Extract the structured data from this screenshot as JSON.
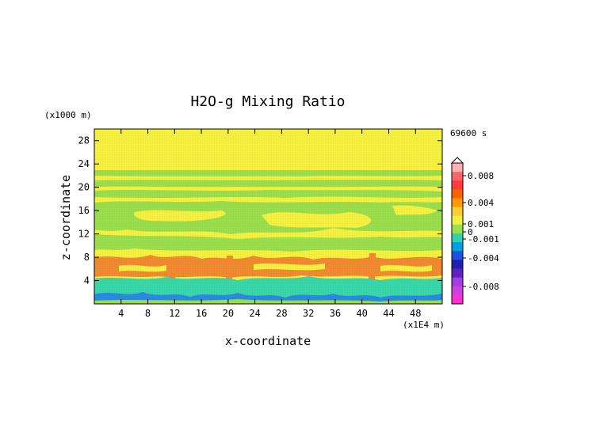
{
  "chart_data": {
    "type": "heatmap",
    "title": "H2O-g Mixing Ratio",
    "xlabel": "x-coordinate",
    "ylabel": "z-coordinate",
    "x_unit": "(x1E4 m)",
    "y_unit": "(x1000 m)",
    "time_label": "69600 s",
    "xlim": [
      0,
      52
    ],
    "ylim": [
      0,
      30
    ],
    "x_ticks": [
      4,
      8,
      12,
      16,
      20,
      24,
      28,
      32,
      36,
      40,
      44,
      48
    ],
    "y_ticks": [
      4,
      8,
      12,
      16,
      20,
      24,
      28
    ],
    "colorbar": {
      "labels": [
        "0.008",
        "0.004",
        "0.001",
        "0",
        "-0.001",
        "-0.004",
        "-0.008"
      ],
      "colors": [
        "#ffb0b0",
        "#ff6464",
        "#ff3c3c",
        "#ff6000",
        "#ff9a00",
        "#ffcc33",
        "#f0f040",
        "#98e050",
        "#30d0b0",
        "#00a0e0",
        "#2050e0",
        "#2020b0",
        "#6020c0",
        "#a040e0",
        "#d040e0",
        "#ff30d0"
      ]
    },
    "field_colors": {
      "background": "#f5f040",
      "green": "#9ade4e",
      "orange": "#f08a30",
      "cyan": "#38d6a8",
      "blue": "#2a8ae0"
    },
    "layers": [
      {
        "z": [
          0,
          1.2
        ],
        "color": "blue"
      },
      {
        "z": [
          0.8,
          4.6
        ],
        "color": "cyan"
      },
      {
        "z": [
          4.6,
          8.2
        ],
        "color": "orange"
      },
      {
        "z": [
          9.5,
          12.5
        ],
        "color": "green"
      },
      {
        "z": [
          14,
          19
        ],
        "color": "green"
      },
      {
        "z": [
          20.5,
          22.5
        ],
        "color": "green"
      }
    ]
  }
}
